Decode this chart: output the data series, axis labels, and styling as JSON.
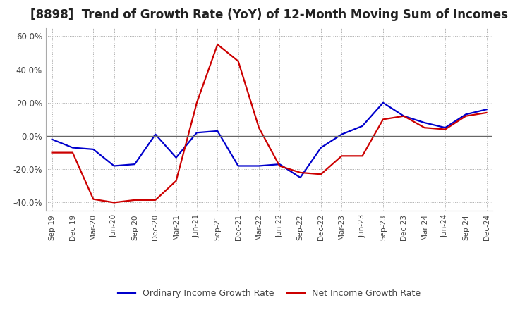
{
  "title": "[8898]  Trend of Growth Rate (YoY) of 12-Month Moving Sum of Incomes",
  "title_fontsize": 12,
  "ylim": [
    -45,
    65
  ],
  "yticks": [
    -40,
    -20,
    0,
    20,
    40,
    60
  ],
  "ytick_labels": [
    "-40.0%",
    "-20.0%",
    "0.0%",
    "20.0%",
    "40.0%",
    "60.0%"
  ],
  "x_labels": [
    "Sep-19",
    "Dec-19",
    "Mar-20",
    "Jun-20",
    "Sep-20",
    "Dec-20",
    "Mar-21",
    "Jun-21",
    "Sep-21",
    "Dec-21",
    "Mar-22",
    "Jun-22",
    "Sep-22",
    "Dec-22",
    "Mar-23",
    "Jun-23",
    "Sep-23",
    "Dec-23",
    "Mar-24",
    "Jun-24",
    "Sep-24",
    "Dec-24"
  ],
  "ordinary_income": [
    -2.0,
    -7.0,
    -8.0,
    -18.0,
    -17.0,
    1.0,
    -13.0,
    2.0,
    3.0,
    -18.0,
    -18.0,
    -17.0,
    -25.0,
    -7.0,
    1.0,
    6.0,
    20.0,
    12.0,
    8.0,
    5.0,
    13.0,
    16.0
  ],
  "net_income": [
    -10.0,
    -10.0,
    -38.0,
    -40.0,
    -38.5,
    -38.5,
    -27.0,
    20.0,
    55.0,
    45.0,
    5.0,
    -18.0,
    -22.0,
    -23.0,
    -12.0,
    -12.0,
    10.0,
    12.0,
    5.0,
    4.0,
    12.0,
    14.0
  ],
  "ordinary_color": "#0000cc",
  "net_color": "#cc0000",
  "line_width": 1.6,
  "legend_ordinary": "Ordinary Income Growth Rate",
  "legend_net": "Net Income Growth Rate",
  "background_color": "#ffffff",
  "grid_color": "#aaaaaa"
}
